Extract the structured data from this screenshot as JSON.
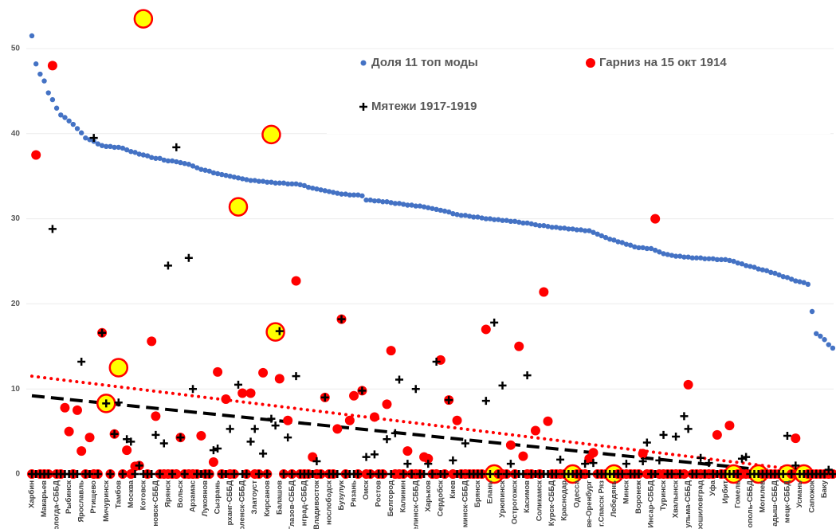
{
  "chart_data": {
    "type": "scatter",
    "categories": [
      "Харбин",
      null,
      null,
      "Макарьев",
      null,
      null,
      "Вологда-СББД",
      null,
      null,
      "Рыбинск",
      null,
      null,
      "Ярославль",
      null,
      null,
      "Ртищево",
      null,
      null,
      "Мичуринск",
      null,
      null,
      "Тамбов",
      null,
      null,
      "Москва",
      null,
      null,
      "Котовск",
      null,
      null,
      "новск-СББД",
      null,
      null,
      "Ярянск",
      null,
      null,
      "Вольск",
      null,
      null,
      "Арзамас",
      null,
      null,
      "Лукоянов",
      null,
      null,
      "Сызрань",
      null,
      null,
      "рханг-СББД",
      null,
      null,
      "оленск-СББД",
      null,
      null,
      "Златоуст",
      null,
      null,
      "Кирсанов",
      null,
      null,
      "Балашов",
      null,
      null,
      "Глазов-СББД",
      null,
      null,
      "нград-СББД",
      null,
      null,
      "Владивосток",
      null,
      null,
      "нослободск",
      null,
      null,
      "Бузулук",
      null,
      null,
      "Рязань",
      null,
      null,
      "Омск",
      null,
      null,
      "Ростов",
      null,
      null,
      "Белгород",
      null,
      null,
      "Калинин",
      null,
      null,
      "елинск-СББД",
      null,
      null,
      "Харьков",
      null,
      null,
      "Сердобск",
      null,
      null,
      "Киев",
      null,
      null,
      "минск-СББД",
      null,
      null,
      "Брянск",
      null,
      null,
      "Елань",
      null,
      null,
      "Урюпинск",
      null,
      null,
      "Острогожск",
      null,
      null,
      "Касимов",
      null,
      null,
      "Соликамск",
      null,
      null,
      "Курск-СББД",
      null,
      null,
      "Краснодар",
      null,
      null,
      "Одесса",
      null,
      null,
      "ве-Оренбург",
      null,
      null,
      "г.Спасск Ряз",
      null,
      null,
      "Лебедянь",
      null,
      null,
      "Минск",
      null,
      null,
      "Воронеж",
      null,
      null,
      "Инсар-СББД",
      null,
      null,
      "Туринск",
      null,
      null,
      "Хвалынск",
      null,
      null,
      "ульма-СББД",
      null,
      null,
      "рошиловград",
      null,
      null,
      "Уфа",
      null,
      null,
      "Ирбит",
      null,
      null,
      "Гомель",
      null,
      null,
      "ополь-СББД",
      null,
      null,
      "Могилев",
      null,
      null,
      "адыш-СББД",
      null,
      null,
      "мецк-СББД",
      null,
      null,
      "Усмань",
      null,
      null,
      "Сапожок",
      null,
      null,
      "Баку",
      null,
      null
    ],
    "ylim": [
      0,
      55
    ],
    "yticks": [
      0,
      10,
      20,
      30,
      40,
      50
    ],
    "grid": true,
    "series": [
      {
        "name": "Доля 11 топ моды",
        "color": "#4472c4",
        "marker": "dot",
        "values": [
          51.5,
          48.2,
          47,
          46.2,
          44.8,
          44.0,
          43,
          42.2,
          41.9,
          41.5,
          41.1,
          40.6,
          40.1,
          39.5,
          39.3,
          39.1,
          38.8,
          38.6,
          38.5,
          38.5,
          38.4,
          38.4,
          38.3,
          38.1,
          37.9,
          37.8,
          37.6,
          37.5,
          37.4,
          37.2,
          37.1,
          37.1,
          36.9,
          36.8,
          36.8,
          36.7,
          36.6,
          36.5,
          36.4,
          36.2,
          36.0,
          35.8,
          35.7,
          35.6,
          35.4,
          35.3,
          35.2,
          35.1,
          35.0,
          34.9,
          34.8,
          34.7,
          34.6,
          34.5,
          34.5,
          34.4,
          34.4,
          34.3,
          34.3,
          34.2,
          34.2,
          34.2,
          34.1,
          34.1,
          34.1,
          34.0,
          33.9,
          33.7,
          33.6,
          33.5,
          33.4,
          33.3,
          33.2,
          33.1,
          33.0,
          32.9,
          32.9,
          32.8,
          32.8,
          32.8,
          32.7,
          32.2,
          32.2,
          32.1,
          32.1,
          32.0,
          32.0,
          31.9,
          31.8,
          31.8,
          31.7,
          31.6,
          31.6,
          31.5,
          31.5,
          31.4,
          31.3,
          31.2,
          31.1,
          31.0,
          30.9,
          30.8,
          30.6,
          30.5,
          30.4,
          30.4,
          30.3,
          30.2,
          30.2,
          30.1,
          30.0,
          30.0,
          29.9,
          29.9,
          29.8,
          29.8,
          29.7,
          29.7,
          29.6,
          29.5,
          29.5,
          29.4,
          29.3,
          29.2,
          29.2,
          29.1,
          29.0,
          29.0,
          28.9,
          28.9,
          28.8,
          28.8,
          28.7,
          28.7,
          28.6,
          28.6,
          28.4,
          28.2,
          28.0,
          27.8,
          27.6,
          27.5,
          27.3,
          27.2,
          27.0,
          26.9,
          26.7,
          26.6,
          26.6,
          26.5,
          26.5,
          26.3,
          26.1,
          25.9,
          25.8,
          25.7,
          25.6,
          25.6,
          25.5,
          25.5,
          25.4,
          25.4,
          25.4,
          25.3,
          25.3,
          25.3,
          25.2,
          25.2,
          25.2,
          25.1,
          25.0,
          24.8,
          24.7,
          24.5,
          24.4,
          24.3,
          24.1,
          24.0,
          23.9,
          23.7,
          23.6,
          23.4,
          23.2,
          23.1,
          22.9,
          22.7,
          22.6,
          22.5,
          22.3,
          19.1,
          16.5,
          16.2,
          15.8,
          15.2,
          14.8
        ]
      },
      {
        "name": "Гарниз на 15 окт 1914",
        "color": "#ff0000",
        "marker": "circle",
        "highlight_color": "#ffff00",
        "highlight_indices": [
          18,
          21,
          27,
          50,
          58,
          59,
          112,
          131,
          141,
          170,
          176,
          183,
          187
        ],
        "values": [
          0,
          37.5,
          0,
          0,
          0,
          48,
          0,
          0,
          7.8,
          5,
          0,
          7.5,
          2.7,
          0,
          4.3,
          0,
          0,
          16.6,
          8.3,
          0,
          4.7,
          12.5,
          0,
          2.8,
          0,
          0.9,
          1,
          53.5,
          0,
          15.6,
          6.8,
          0,
          0,
          0,
          0,
          0,
          4.3,
          0,
          0,
          0,
          0,
          4.5,
          0,
          0,
          1.4,
          12,
          0,
          8.8,
          0,
          0,
          31.4,
          9.5,
          0,
          9.5,
          0,
          0,
          11.9,
          0,
          39.9,
          16.7,
          11.2,
          0,
          6.3,
          0,
          22.7,
          0,
          0,
          0,
          2,
          0,
          0,
          9,
          0,
          0,
          5.3,
          18.2,
          0,
          6.3,
          9.2,
          0,
          9.8,
          0,
          0,
          6.7,
          0,
          0,
          8.2,
          14.5,
          0,
          0,
          0,
          2.7,
          0,
          0,
          0,
          2,
          1.8,
          0,
          0,
          13.4,
          0,
          8.7,
          0,
          6.3,
          0,
          0,
          0,
          0,
          0,
          0,
          17,
          0,
          0,
          0,
          0,
          0,
          3.4,
          0,
          15,
          2.1,
          0,
          0,
          5.1,
          0,
          21.4,
          6.2,
          0,
          0,
          0,
          0,
          0,
          0,
          0,
          0,
          0,
          1.8,
          2.5,
          0,
          0,
          0,
          0,
          0,
          0,
          0,
          0,
          0,
          0,
          0,
          2.4,
          0,
          0,
          30,
          0,
          0,
          0,
          0,
          0,
          0,
          0,
          10.5,
          0,
          0,
          0,
          0,
          0,
          0,
          4.6,
          0,
          0,
          5.7,
          0,
          0,
          0,
          0,
          0,
          0,
          0,
          0,
          0,
          0,
          0,
          0,
          0,
          0,
          0,
          4.2,
          0,
          0,
          0,
          0,
          0,
          0,
          0,
          0,
          0
        ]
      },
      {
        "name": "Мятежи 1917-1919",
        "color": "#000000",
        "marker": "plus",
        "values": [
          0,
          0,
          0,
          0,
          0,
          28.8,
          0,
          0,
          0,
          0,
          0,
          0,
          13.2,
          0,
          0,
          39.5,
          0,
          16.6,
          8.3,
          0,
          4.7,
          8.4,
          0,
          4.1,
          3.8,
          0,
          1,
          0,
          0,
          0,
          4.6,
          0,
          3.6,
          24.5,
          0,
          38.4,
          4.3,
          0,
          25.4,
          10,
          0,
          0,
          0,
          0,
          2.8,
          3,
          0,
          0,
          5.3,
          0,
          10.5,
          0,
          0,
          3.8,
          5.3,
          0,
          2.4,
          0,
          6.5,
          5.7,
          16.8,
          0,
          4.3,
          0,
          11.5,
          0,
          0,
          0,
          0,
          1.5,
          0,
          9,
          0,
          0,
          0,
          18.2,
          0,
          0,
          0,
          0,
          9.8,
          2,
          0,
          2.3,
          0,
          0,
          4.1,
          0,
          4.8,
          11.1,
          0,
          1.2,
          0,
          10,
          0,
          0,
          1.2,
          0,
          13.2,
          0,
          0,
          8.7,
          1.6,
          0,
          0,
          3.6,
          0,
          0,
          0,
          0,
          8.6,
          0,
          17.8,
          0,
          10.4,
          0,
          1.2,
          0,
          0,
          0,
          11.6,
          0,
          0,
          0,
          0,
          0,
          0,
          0,
          1.7,
          0,
          0,
          0,
          0,
          0,
          1.2,
          0,
          1.3,
          0,
          0,
          0,
          0,
          0,
          0,
          0,
          1.2,
          0,
          0,
          0,
          1.5,
          3.7,
          0,
          0,
          1.6,
          4.6,
          0,
          0,
          4.4,
          0,
          6.8,
          5.3,
          0,
          0,
          1.9,
          0,
          1.3,
          0,
          0,
          0,
          0,
          0,
          0,
          0,
          1.8,
          2,
          0,
          0,
          0,
          0,
          0,
          0,
          0,
          0,
          0,
          4.5,
          0,
          1,
          0,
          0,
          0,
          0,
          0,
          0,
          0,
          0.5,
          0
        ]
      }
    ],
    "trendlines": [
      {
        "color": "#000000",
        "style": "dashed",
        "x": [
          0,
          185
        ],
        "values": [
          9.2,
          0.1
        ]
      },
      {
        "color": "#ff0000",
        "style": "dotted",
        "x": [
          0,
          194
        ],
        "values": [
          11.5,
          0
        ]
      }
    ]
  }
}
